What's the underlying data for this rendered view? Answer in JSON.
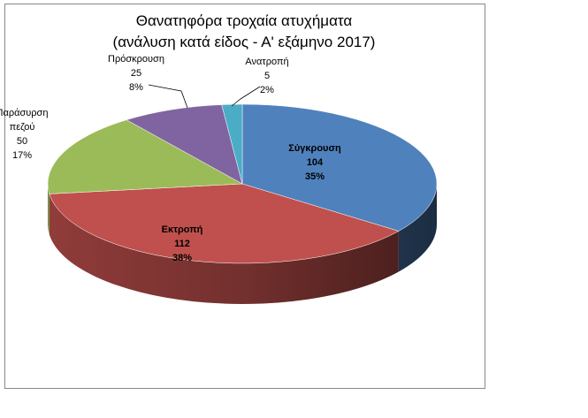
{
  "chart_data": {
    "type": "pie3d",
    "title": [
      "Θανατηφόρα τροχαία ατυχήματα",
      "(ανάλυση κατά είδος - Α' εξάμηνο 2017)"
    ],
    "categories": [
      "Σύγκρουση",
      "Εκτροπή",
      "Παράσυρση πεζού",
      "Πρόσκρουση",
      "Ανατροπή"
    ],
    "values": [
      104,
      112,
      50,
      25,
      5
    ],
    "percent_labels": [
      "35%",
      "38%",
      "17%",
      "8%",
      "2%"
    ],
    "colors": [
      "#4f81bd",
      "#c0504d",
      "#9bbb59",
      "#8064a2",
      "#4bacc6"
    ]
  }
}
